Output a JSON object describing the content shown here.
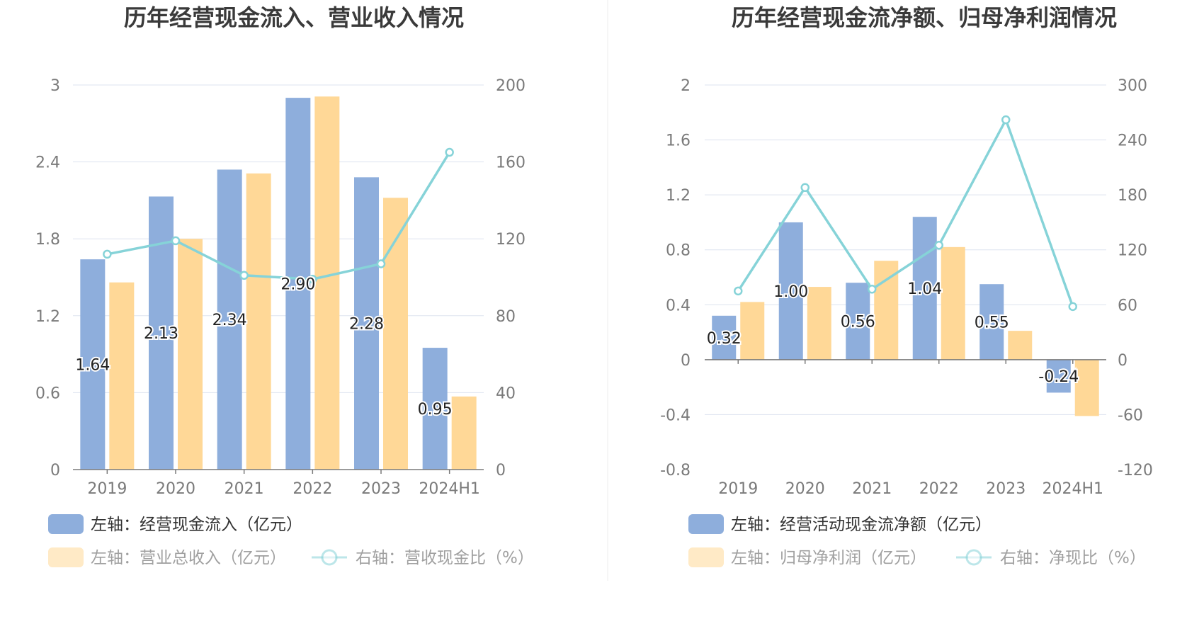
{
  "colors": {
    "bar1": "#8eaedc",
    "bar2": "#ffd897",
    "line": "#86d3d8",
    "grid": "#dde3ef",
    "axis": "#7a7a7a",
    "legend_text": "#333333",
    "legend_text_faded": "#a0a0a0"
  },
  "chart_data": [
    {
      "type": "bar",
      "title": "历年经营现金流入、营业收入情况",
      "categories": [
        "2019",
        "2020",
        "2021",
        "2022",
        "2023",
        "2024H1"
      ],
      "left_axis": {
        "ylim": [
          0,
          3
        ],
        "ticks": [
          "0",
          "0.6",
          "1.2",
          "1.8",
          "2.4",
          "3"
        ]
      },
      "right_axis": {
        "ylim": [
          0,
          200
        ],
        "ticks": [
          "0",
          "40",
          "80",
          "120",
          "160",
          "200"
        ]
      },
      "grid": true,
      "series": [
        {
          "name": "左轴：经营现金流入（亿元）",
          "type": "bar",
          "axis": "left",
          "values": [
            1.64,
            2.13,
            2.34,
            2.9,
            2.28,
            0.95
          ],
          "labels": [
            "1.64",
            "2.13",
            "2.34",
            "2.90",
            "2.28",
            "0.95"
          ]
        },
        {
          "name": "左轴：营业总收入（亿元）",
          "type": "bar",
          "axis": "left",
          "values": [
            1.46,
            1.8,
            2.31,
            2.91,
            2.12,
            0.57
          ]
        },
        {
          "name": "右轴：营收现金比（%）",
          "type": "line",
          "axis": "right",
          "values": [
            112,
            119,
            101,
            99,
            107,
            165
          ]
        }
      ],
      "legend_placement": "bottom-left"
    },
    {
      "type": "bar",
      "title": "历年经营现金流净额、归母净利润情况",
      "categories": [
        "2019",
        "2020",
        "2021",
        "2022",
        "2023",
        "2024H1"
      ],
      "left_axis": {
        "ylim": [
          -0.8,
          2
        ],
        "ticks": [
          "-0.8",
          "-0.4",
          "0",
          "0.4",
          "0.8",
          "1.2",
          "1.6",
          "2"
        ]
      },
      "right_axis": {
        "ylim": [
          -120,
          300
        ],
        "ticks": [
          "-120",
          "-60",
          "0",
          "60",
          "120",
          "180",
          "240",
          "300"
        ]
      },
      "grid": true,
      "series": [
        {
          "name": "左轴：经营活动现金流净额（亿元）",
          "type": "bar",
          "axis": "left",
          "values": [
            0.32,
            1.0,
            0.56,
            1.04,
            0.55,
            -0.24
          ],
          "labels": [
            "0.32",
            "1.00",
            "0.56",
            "1.04",
            "0.55",
            "-0.24"
          ]
        },
        {
          "name": "左轴：归母净利润（亿元）",
          "type": "bar",
          "axis": "left",
          "values": [
            0.42,
            0.53,
            0.72,
            0.82,
            0.21,
            -0.41
          ]
        },
        {
          "name": "右轴：净现比（%）",
          "type": "line",
          "axis": "right",
          "values": [
            75,
            188,
            77,
            125,
            262,
            58
          ]
        }
      ],
      "legend_placement": "bottom-left"
    }
  ]
}
